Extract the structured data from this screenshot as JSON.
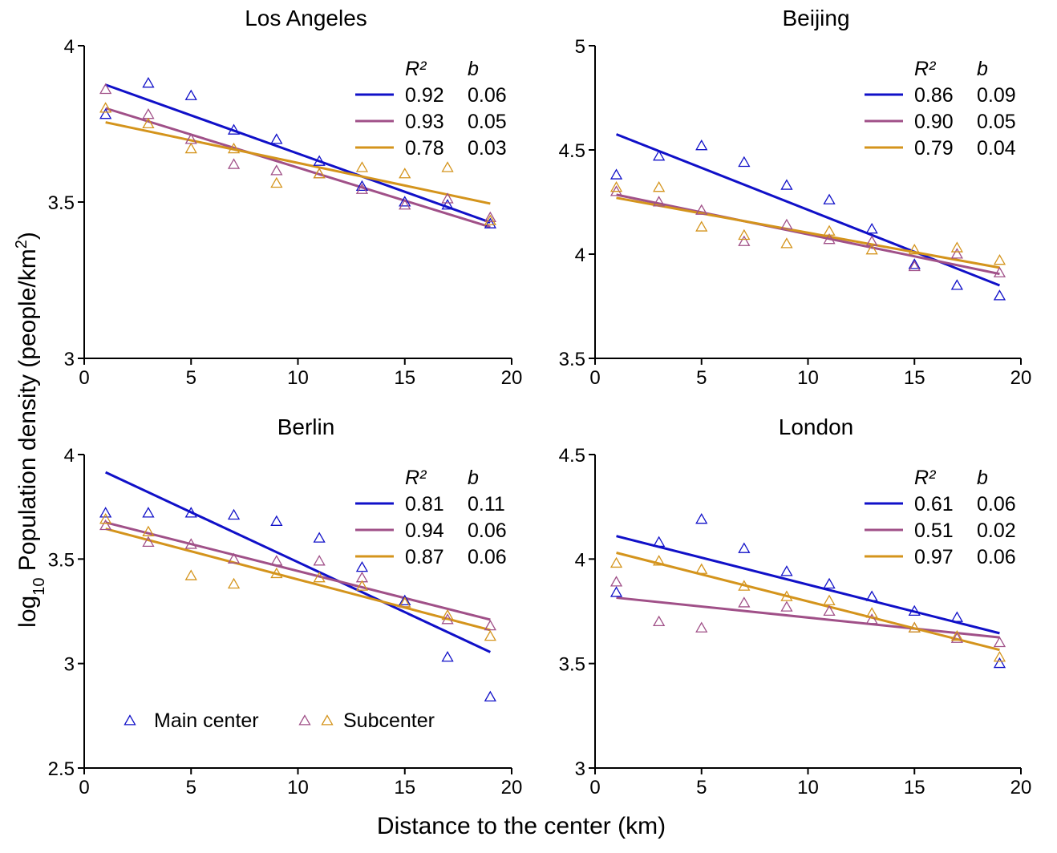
{
  "labels": {
    "xlabel": "Distance to the center (km)",
    "ylabel_prefix": "log",
    "ylabel_sub": "10",
    "ylabel_main": " Population density (people/km",
    "ylabel_sup": "2",
    "ylabel_end": ")",
    "r2_header": "R²",
    "b_header": "b",
    "legend_main": "Main center",
    "legend_sub": "Subcenter"
  },
  "colors": {
    "main": "#1010c8",
    "sub1": "#a05088",
    "sub2": "#d4941c"
  },
  "chart_data": [
    {
      "type": "scatter",
      "title": "Los Angeles",
      "xlim": [
        0,
        20
      ],
      "ylim": [
        3,
        4
      ],
      "xticks": [
        "0",
        "5",
        "10",
        "15",
        "20"
      ],
      "yticks": [
        "3",
        "3.5",
        "4"
      ],
      "ytick_values": [
        3,
        3.5,
        4
      ],
      "x": [
        1,
        3,
        5,
        7,
        9,
        11,
        13,
        15,
        17,
        19
      ],
      "series": [
        {
          "color": "main",
          "y": [
            3.78,
            3.88,
            3.84,
            3.73,
            3.7,
            3.63,
            3.55,
            3.5,
            3.49,
            3.43
          ],
          "fit": [
            3.875,
            3.435
          ],
          "r2": "0.92",
          "b": "0.06"
        },
        {
          "color": "sub1",
          "y": [
            3.86,
            3.78,
            3.7,
            3.62,
            3.6,
            3.59,
            3.54,
            3.49,
            3.51,
            3.45
          ],
          "fit": [
            3.8,
            3.42
          ],
          "r2": "0.93",
          "b": "0.05"
        },
        {
          "color": "sub2",
          "y": [
            3.8,
            3.75,
            3.67,
            3.67,
            3.56,
            3.59,
            3.61,
            3.59,
            3.61,
            3.44
          ],
          "fit": [
            3.755,
            3.495
          ],
          "r2": "0.78",
          "b": "0.03"
        }
      ]
    },
    {
      "type": "scatter",
      "title": "Beijing",
      "xlim": [
        0,
        20
      ],
      "ylim": [
        3.5,
        5
      ],
      "xticks": [
        "0",
        "5",
        "10",
        "15",
        "20"
      ],
      "yticks": [
        "3.5",
        "4",
        "4.5",
        "5"
      ],
      "ytick_values": [
        3.5,
        4,
        4.5,
        5
      ],
      "x": [
        1,
        3,
        5,
        7,
        9,
        11,
        13,
        15,
        17,
        19
      ],
      "series": [
        {
          "color": "main",
          "y": [
            4.38,
            4.47,
            4.52,
            4.44,
            4.33,
            4.26,
            4.12,
            3.95,
            3.85,
            3.8
          ],
          "fit": [
            4.575,
            3.85
          ],
          "r2": "0.86",
          "b": "0.09"
        },
        {
          "color": "sub1",
          "y": [
            4.3,
            4.25,
            4.21,
            4.06,
            4.14,
            4.07,
            4.06,
            3.94,
            4.0,
            3.91
          ],
          "fit": [
            4.285,
            3.905
          ],
          "r2": "0.90",
          "b": "0.05"
        },
        {
          "color": "sub2",
          "y": [
            4.32,
            4.32,
            4.13,
            4.09,
            4.05,
            4.11,
            4.02,
            4.02,
            4.03,
            3.97
          ],
          "fit": [
            4.27,
            3.935
          ],
          "r2": "0.79",
          "b": "0.04"
        }
      ]
    },
    {
      "type": "scatter",
      "title": "Berlin",
      "xlim": [
        0,
        20
      ],
      "ylim": [
        2.5,
        4
      ],
      "xticks": [
        "0",
        "5",
        "10",
        "15",
        "20"
      ],
      "yticks": [
        "2.5",
        "3",
        "3.5",
        "4"
      ],
      "ytick_values": [
        2.5,
        3,
        3.5,
        4
      ],
      "x": [
        1,
        3,
        5,
        7,
        9,
        11,
        13,
        15,
        17,
        19
      ],
      "series": [
        {
          "color": "main",
          "y": [
            3.72,
            3.72,
            3.72,
            3.71,
            3.68,
            3.6,
            3.46,
            3.3,
            3.03,
            2.84
          ],
          "fit": [
            3.915,
            3.055
          ],
          "r2": "0.81",
          "b": "0.11"
        },
        {
          "color": "sub1",
          "y": [
            3.66,
            3.58,
            3.57,
            3.5,
            3.49,
            3.49,
            3.41,
            3.29,
            3.21,
            3.18
          ],
          "fit": [
            3.675,
            3.21
          ],
          "r2": "0.94",
          "b": "0.06"
        },
        {
          "color": "sub2",
          "y": [
            3.69,
            3.63,
            3.42,
            3.38,
            3.43,
            3.41,
            3.37,
            3.29,
            3.23,
            3.13
          ],
          "fit": [
            3.645,
            3.16
          ],
          "r2": "0.87",
          "b": "0.06"
        }
      ]
    },
    {
      "type": "scatter",
      "title": "London",
      "xlim": [
        0,
        20
      ],
      "ylim": [
        3,
        4.5
      ],
      "xticks": [
        "0",
        "5",
        "10",
        "15",
        "20"
      ],
      "yticks": [
        "3",
        "3.5",
        "4",
        "4.5"
      ],
      "ytick_values": [
        3,
        3.5,
        4,
        4.5
      ],
      "x": [
        1,
        3,
        5,
        7,
        9,
        11,
        13,
        15,
        17,
        19
      ],
      "series": [
        {
          "color": "main",
          "y": [
            3.84,
            4.08,
            4.19,
            4.05,
            3.94,
            3.88,
            3.82,
            3.75,
            3.72,
            3.5
          ],
          "fit": [
            4.11,
            3.645
          ],
          "r2": "0.61",
          "b": "0.06"
        },
        {
          "color": "sub1",
          "y": [
            3.89,
            3.7,
            3.67,
            3.79,
            3.77,
            3.75,
            3.71,
            3.67,
            3.62,
            3.6
          ],
          "fit": [
            3.815,
            3.625
          ],
          "r2": "0.51",
          "b": "0.02"
        },
        {
          "color": "sub2",
          "y": [
            3.98,
            3.99,
            3.95,
            3.87,
            3.82,
            3.8,
            3.74,
            3.67,
            3.63,
            3.53
          ],
          "fit": [
            4.03,
            3.565
          ],
          "r2": "0.97",
          "b": "0.06"
        }
      ]
    }
  ]
}
